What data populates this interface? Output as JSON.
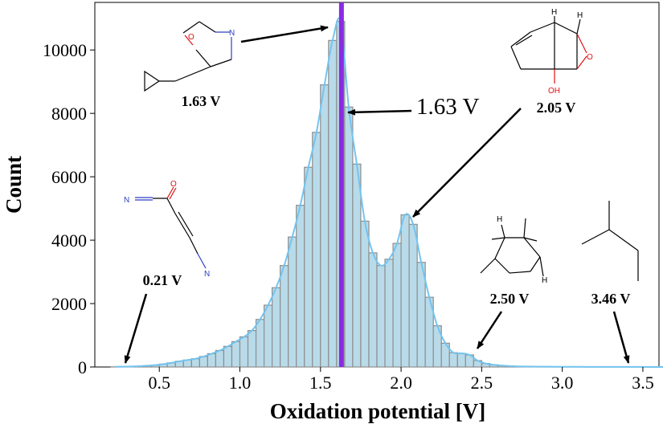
{
  "chart_data": {
    "type": "bar",
    "subtype": "histogram-with-kde",
    "xlabel": "Oxidation potential [V]",
    "ylabel": "Count",
    "xlim": [
      0.1,
      3.6
    ],
    "ylim": [
      0,
      11500
    ],
    "xticks": [
      "0.5",
      "1.0",
      "1.5",
      "2.0",
      "2.5",
      "3.0",
      "3.5"
    ],
    "xtick_values": [
      0.5,
      1.0,
      1.5,
      2.0,
      2.5,
      3.0,
      3.5
    ],
    "yticks": [
      "0",
      "2000",
      "4000",
      "6000",
      "8000",
      "10000"
    ],
    "ytick_values": [
      0,
      2000,
      4000,
      6000,
      8000,
      10000
    ],
    "bin_width": 0.05,
    "bin_start": 0.2,
    "counts": [
      5,
      10,
      15,
      25,
      40,
      60,
      90,
      130,
      180,
      220,
      260,
      330,
      420,
      520,
      650,
      800,
      950,
      1150,
      1500,
      1950,
      2500,
      3200,
      4100,
      5100,
      6300,
      7400,
      8900,
      10300,
      10900,
      8200,
      6400,
      4600,
      3600,
      3200,
      3400,
      3900,
      4800,
      4500,
      3300,
      2200,
      1300,
      750,
      450,
      430,
      380,
      200,
      110,
      70,
      45,
      30,
      20,
      15,
      12,
      10,
      8,
      7,
      6,
      5,
      5,
      4,
      4,
      3,
      3,
      2,
      2,
      2,
      1,
      1,
      1,
      1,
      1,
      1,
      1
    ],
    "kde_color": "#73c4ef",
    "bar_fill": "#b9dbe9",
    "bar_edge": "#8e8e8e",
    "mean_line": {
      "value": 1.63,
      "label": "1.63 V",
      "color": "#8a2be2"
    },
    "annotations": [
      {
        "label": "1.63 V",
        "molecule": "oxazole-cyclopropyl"
      },
      {
        "label": "2.05 V",
        "molecule": "epoxide-bicyclic"
      },
      {
        "label": "0.21 V",
        "molecule": "cyano-ketone"
      },
      {
        "label": "2.50 V",
        "molecule": "tricyclic"
      },
      {
        "label": "3.46 V",
        "molecule": "isopentane"
      }
    ]
  }
}
